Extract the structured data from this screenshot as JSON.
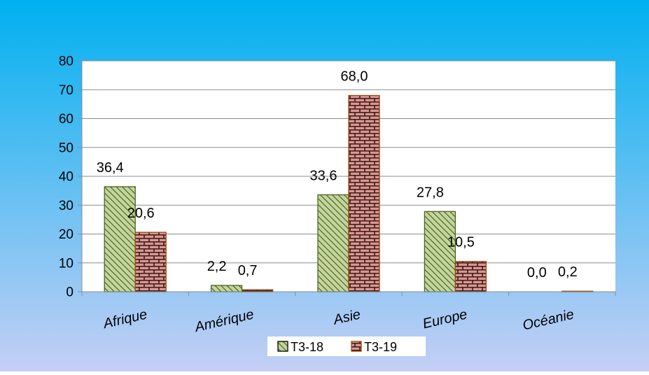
{
  "chart_data": {
    "type": "bar",
    "title": "",
    "xlabel": "",
    "ylabel": "",
    "categories": [
      "Afrique",
      "Amérique",
      "Asie",
      "Europe",
      "Océanie"
    ],
    "series": [
      {
        "name": "T3-18",
        "values": [
          36.4,
          2.2,
          33.6,
          27.8,
          0.0
        ],
        "labels": [
          "36,4",
          "2,2",
          "33,6",
          "27,8",
          "0,0"
        ],
        "color": "#c3d69b",
        "pattern": "diagonal-hatch"
      },
      {
        "name": "T3-19",
        "values": [
          20.6,
          0.7,
          68.0,
          10.5,
          0.2
        ],
        "labels": [
          "20,6",
          "0,7",
          "68,0",
          "10,5",
          "0,2"
        ],
        "color": "#d99694",
        "pattern": "brick"
      }
    ],
    "ylim": [
      0,
      80
    ],
    "yticks": [
      0,
      10,
      20,
      30,
      40,
      50,
      60,
      70,
      80
    ],
    "grid": true,
    "legend_position": "bottom-center",
    "background": {
      "top": "#00b0f0",
      "bottom": "#c5cff5"
    }
  }
}
